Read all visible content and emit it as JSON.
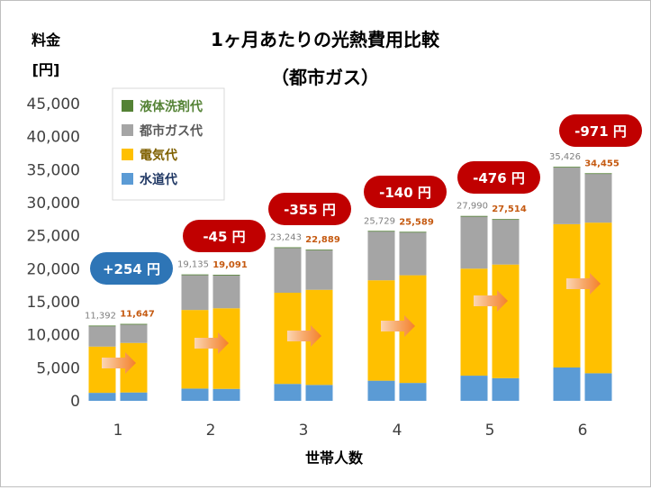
{
  "chart_data": {
    "type": "bar",
    "title": "1ヶ月あたりの光熱費用比較",
    "subtitle": "（都市ガス）",
    "ylabel_line1": "料金",
    "ylabel_line2": "[円]",
    "xlabel": "世帯人数",
    "ylim": [
      0,
      45000
    ],
    "yticks": [
      "0",
      "5,000",
      "10,000",
      "15,000",
      "20,000",
      "25,000",
      "30,000",
      "35,000",
      "40,000",
      "45,000"
    ],
    "ytick_values": [
      0,
      5000,
      10000,
      15000,
      20000,
      25000,
      30000,
      35000,
      40000,
      45000
    ],
    "categories": [
      "1",
      "2",
      "3",
      "4",
      "5",
      "6"
    ],
    "grid": false,
    "legend_position": "top-left",
    "series": [
      {
        "name": "液体洗剤代",
        "color": "#548235",
        "left": [
          80,
          80,
          80,
          80,
          80,
          80
        ],
        "right": [
          80,
          80,
          80,
          80,
          80,
          80
        ]
      },
      {
        "name": "都市ガス代",
        "color": "#a5a5a5",
        "left": [
          3100,
          5300,
          6800,
          7400,
          7900,
          8600
        ],
        "right": [
          2800,
          5000,
          6000,
          6500,
          6800,
          7400
        ]
      },
      {
        "name": "電気代",
        "color": "#ffc000",
        "left": [
          7000,
          11900,
          13800,
          15200,
          16200,
          21700
        ],
        "right": [
          7500,
          12200,
          14400,
          16300,
          17200,
          22800
        ]
      },
      {
        "name": "水道代",
        "color": "#5b9bd5",
        "left": [
          1212,
          1855,
          2563,
          3049,
          3810,
          5046
        ],
        "right": [
          1267,
          1811,
          2409,
          2709,
          3434,
          4175
        ]
      }
    ],
    "total_labels_left": [
      "11,392",
      "19,135",
      "23,243",
      "25,729",
      "27,990",
      "35,426"
    ],
    "total_labels_right": [
      "11,647",
      "19,091",
      "22,889",
      "25,589",
      "27,514",
      "34,455"
    ],
    "totals_left": [
      11392,
      19135,
      23243,
      25729,
      27990,
      35426
    ],
    "totals_right": [
      11647,
      19091,
      22889,
      25589,
      27514,
      34455
    ],
    "differences": [
      "+254 円",
      "-45 円",
      "-355 円",
      "-140 円",
      "-476 円",
      "-971 円"
    ],
    "difference_colors": [
      "#2e75b6",
      "#c00000",
      "#c00000",
      "#c00000",
      "#c00000",
      "#c00000"
    ],
    "colors": {
      "total_left_label": "#7f7f7f",
      "total_right_label": "#c55a11",
      "arrow": "#f4802b",
      "axis_text": "#404040"
    }
  }
}
